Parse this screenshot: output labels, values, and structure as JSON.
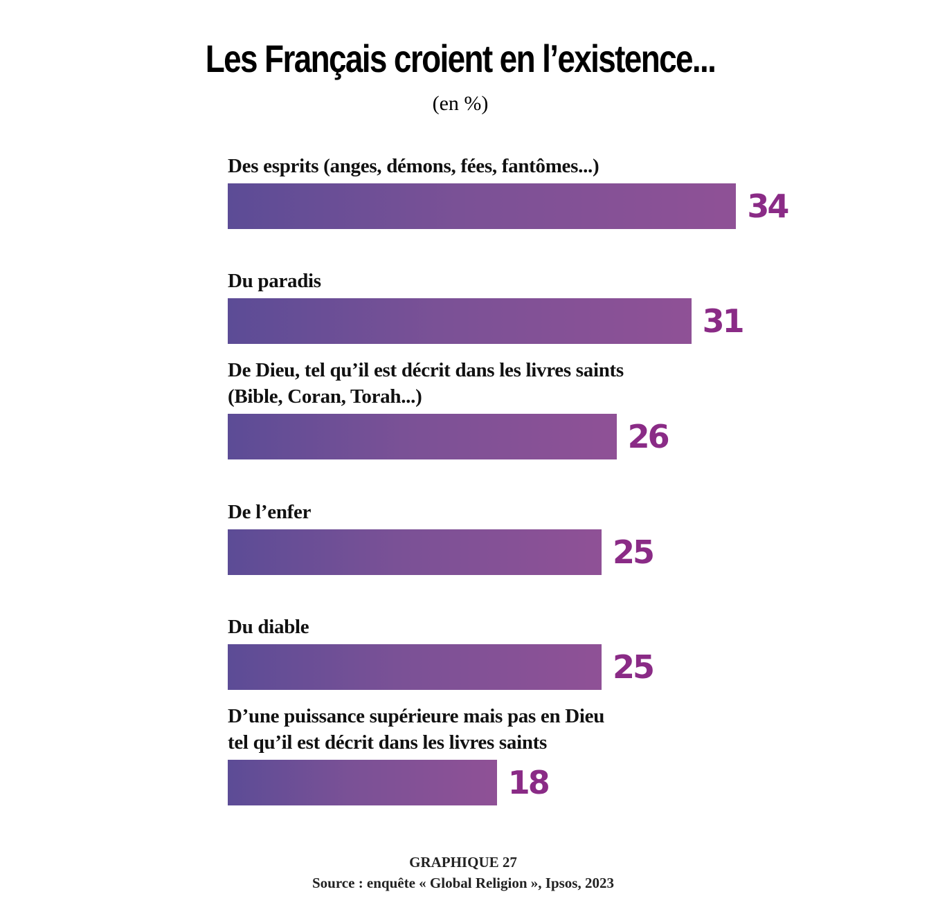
{
  "chart_data": {
    "type": "bar",
    "orientation": "horizontal",
    "title": "Les Français croient en l’existence...",
    "subtitle": "(en %)",
    "categories": [
      "Des esprits (anges, démons, fées, fantômes...)",
      "Du paradis",
      "De Dieu, tel qu’il est décrit dans les livres saints (Bible, Coran, Torah...)",
      "De l’enfer",
      "Du diable",
      "D’une puissance supérieure mais pas en Dieu tel qu’il est décrit dans les livres saints"
    ],
    "label_lines": [
      [
        "Des esprits (anges, démons, fées, fantômes...)"
      ],
      [
        "Du paradis"
      ],
      [
        "De Dieu, tel qu’il est décrit dans les livres saints",
        "(Bible, Coran, Torah...)"
      ],
      [
        "De l’enfer"
      ],
      [
        "Du diable"
      ],
      [
        "D’une puissance supérieure mais pas en Dieu",
        "tel qu’il est décrit dans les livres saints"
      ]
    ],
    "values": [
      34,
      31,
      26,
      25,
      25,
      18
    ],
    "colors": {
      "bar_start": "#5c4c96",
      "bar_end": "#8f5196",
      "value_label": "#8a2b86"
    },
    "grid": false,
    "legend": "none"
  },
  "footer": {
    "graph_label": "GRAPHIQUE 27",
    "source": "Source : enquête « Global Religion », Ipsos, 2023"
  }
}
